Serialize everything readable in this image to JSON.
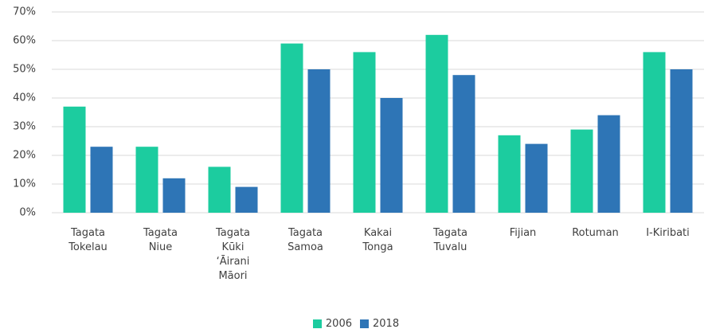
{
  "chart_data": {
    "type": "bar",
    "categories": [
      "Tagata\nTokelau",
      "Tagata\nNiue",
      "Tagata\nKūki\n‘Āirani\nMāori",
      "Tagata\nSamoa",
      "Kakai\nTonga",
      "Tagata\nTuvalu",
      "Fijian",
      "Rotuman",
      "I-Kiribati"
    ],
    "series": [
      {
        "name": "2006",
        "color": "#1ccc9f",
        "values": [
          37,
          23,
          16,
          59,
          56,
          62,
          27,
          29,
          56
        ]
      },
      {
        "name": "2018",
        "color": "#2e75b6",
        "values": [
          23,
          12,
          9,
          50,
          40,
          48,
          24,
          34,
          50
        ]
      }
    ],
    "ylim": [
      0,
      70
    ],
    "yticks": [
      {
        "value": 0,
        "label": "0%"
      },
      {
        "value": 10,
        "label": "10%"
      },
      {
        "value": 20,
        "label": "20%"
      },
      {
        "value": 30,
        "label": "30%"
      },
      {
        "value": 40,
        "label": "40%"
      },
      {
        "value": 50,
        "label": "50%"
      },
      {
        "value": 60,
        "label": "60%"
      },
      {
        "value": 70,
        "label": "70%"
      }
    ],
    "grid": true,
    "legend": "bottom"
  }
}
